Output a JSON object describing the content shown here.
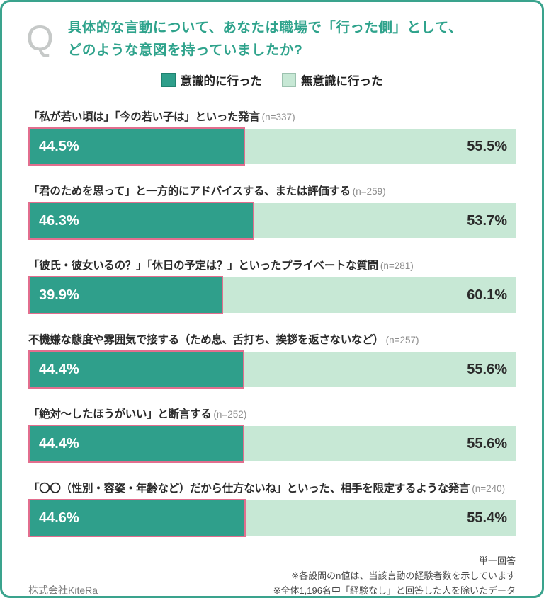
{
  "header": {
    "q_mark": "Q",
    "question_line1": "具体的な言動について、あなたは職場で「行った側」として、",
    "question_line2": "どのような意図を持っていましたか?"
  },
  "legend": {
    "conscious_label": "意識的に行った",
    "unconscious_label": "無意識に行った"
  },
  "colors": {
    "frame_border": "#3aa38d",
    "question_text": "#2fa38c",
    "conscious_fill": "#2f9f8b",
    "unconscious_fill": "#c7e8d5",
    "conscious_outline": "#e26e8e"
  },
  "chart_data": {
    "type": "bar",
    "orientation": "horizontal_stacked",
    "title": "具体的な言動について、あなたは職場で「行った側」として、どのような意図を持っていましたか?",
    "unit": "%",
    "xlim": [
      0,
      100
    ],
    "legend_position": "top-center",
    "categories": [
      "「私が若い頃は」「今の若い子は」といった発言 (n=337)",
      "「君のためを思って」と一方的にアドバイスする、または評価する (n=259)",
      "「彼氏・彼女いるの？」「休日の予定は？」といったプライベートな質問 (n=281)",
      "不機嫌な態度や雰囲気で接する（ため息、舌打ち、挨拶を返さないなど） (n=257)",
      "「絶対〜したほうがいい」と断言する (n=252)",
      "「〇〇（性別・容姿・年齢など）だから仕方ないね」といった、相手を限定するような発言 (n=240)"
    ],
    "n_values": [
      337,
      259,
      281,
      257,
      252,
      240
    ],
    "series": [
      {
        "name": "意識的に行った",
        "values": [
          44.5,
          46.3,
          39.9,
          44.4,
          44.4,
          44.6
        ]
      },
      {
        "name": "無意識に行った",
        "values": [
          55.5,
          53.7,
          60.1,
          55.6,
          55.6,
          55.4
        ]
      }
    ]
  },
  "rows": [
    {
      "label": "「私が若い頃は」「今の若い子は」といった発言",
      "n_label": "(n=337)",
      "conscious_label": "44.5%",
      "unconscious_label": "55.5%",
      "conscious_pct": 44.5
    },
    {
      "label": "「君のためを思って」と一方的にアドバイスする、または評価する",
      "n_label": "(n=259)",
      "conscious_label": "46.3%",
      "unconscious_label": "53.7%",
      "conscious_pct": 46.3
    },
    {
      "label": "「彼氏・彼女いるの？」「休日の予定は？」といったプライベートな質問",
      "n_label": "(n=281)",
      "conscious_label": "39.9%",
      "unconscious_label": "60.1%",
      "conscious_pct": 39.9
    },
    {
      "label": "不機嫌な態度や雰囲気で接する（ため息、舌打ち、挨拶を返さないなど）",
      "n_label": "(n=257)",
      "conscious_label": "44.4%",
      "unconscious_label": "55.6%",
      "conscious_pct": 44.4
    },
    {
      "label": "「絶対〜したほうがいい」と断言する",
      "n_label": "(n=252)",
      "conscious_label": "44.4%",
      "unconscious_label": "55.6%",
      "conscious_pct": 44.4
    },
    {
      "label": "「〇〇（性別・容姿・年齢など）だから仕方ないね」といった、相手を限定するような発言",
      "n_label": "(n=240)",
      "conscious_label": "44.6%",
      "unconscious_label": "55.4%",
      "conscious_pct": 44.6
    }
  ],
  "footer": {
    "answer_type": "単一回答",
    "note1": "※各設問のn値は、当該言動の経験者数を示しています",
    "note2": "※全体1,196名中「経験なし」と回答した人を除いたデータ",
    "company": "株式会社KiteRa"
  }
}
